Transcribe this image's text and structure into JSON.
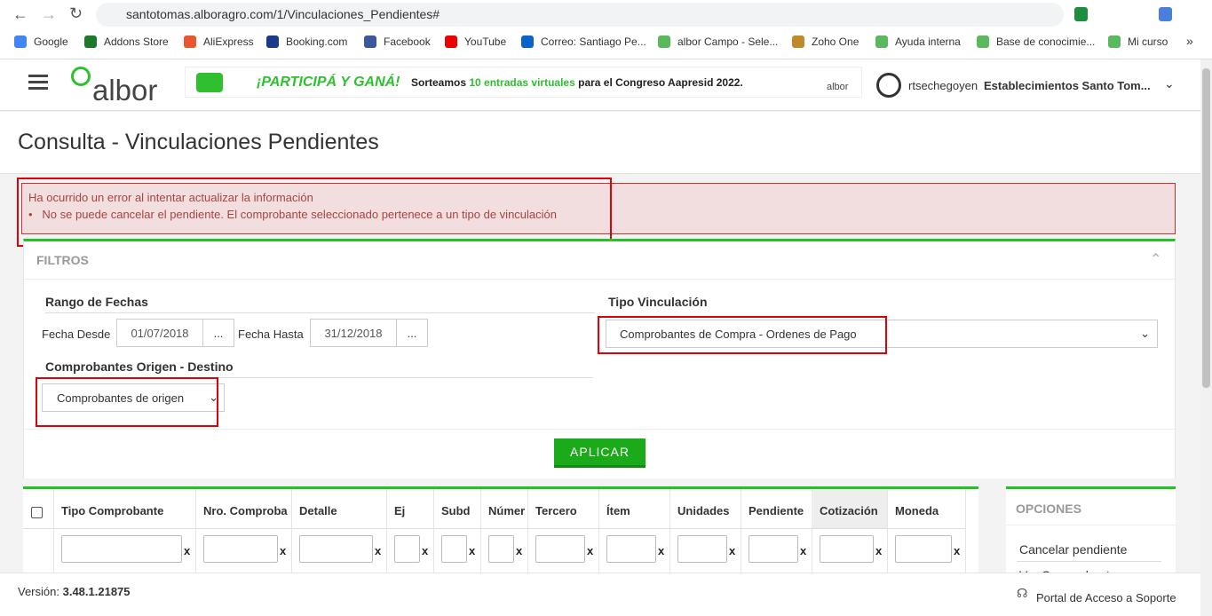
{
  "browser": {
    "url": "santotomas.alboragro.com/1/Vinculaciones_Pendientes#",
    "bookmarks": [
      "Google",
      "Addons Store",
      "AliExpress",
      "Booking.com",
      "Facebook",
      "YouTube",
      "Correo: Santiago Pe...",
      "albor Campo - Sele...",
      "Zoho One",
      "Ayuda interna",
      "Base de conocimie...",
      "Mi curso"
    ],
    "more": "»"
  },
  "header": {
    "logo": "albor",
    "banner": {
      "headline": "¡PARTICIPÁ Y GANÁ!",
      "text_start": "Sorteamos",
      "highlight": "10 entradas virtuales",
      "text_end": "para el Congreso Aapresid 2022.",
      "partner": "albor"
    },
    "user": "rtsechegoyen",
    "company": "Establecimientos Santo Tom..."
  },
  "page": {
    "title": "Consulta - Vinculaciones Pendientes"
  },
  "error": {
    "message": "Ha ocurrido un error al intentar actualizar la información",
    "items": [
      "No se puede cancelar el pendiente. El comprobante seleccionado pertenece a un tipo de vinculación"
    ]
  },
  "filters": {
    "title": "FILTROS",
    "date_range": {
      "title": "Rango de Fechas",
      "from_label": "Fecha Desde",
      "from": "01/07/2018",
      "to_label": "Fecha Hasta",
      "to": "31/12/2018",
      "picker": "..."
    },
    "link_type": {
      "title": "Tipo Vinculación",
      "value": "Comprobantes de Compra - Ordenes de Pago"
    },
    "origin": {
      "title": "Comprobantes Origen - Destino",
      "value": "Comprobantes de origen"
    },
    "apply": "APLICAR"
  },
  "table": {
    "columns": [
      "Tipo Comprobante",
      "Nro. Comproba",
      "Detalle",
      "Ej",
      "Subd",
      "Númer",
      "Tercero",
      "Ítem",
      "Unidades",
      "Pendiente",
      "Cotización",
      "Moneda"
    ],
    "clear": "x"
  },
  "options": {
    "title": "OPCIONES",
    "items": [
      "Cancelar pendiente",
      "Ver Comprobante"
    ]
  },
  "footer": {
    "version_label": "Versión:",
    "version": "3.48.1.21875",
    "support": "Portal de Acceso a Soporte"
  }
}
